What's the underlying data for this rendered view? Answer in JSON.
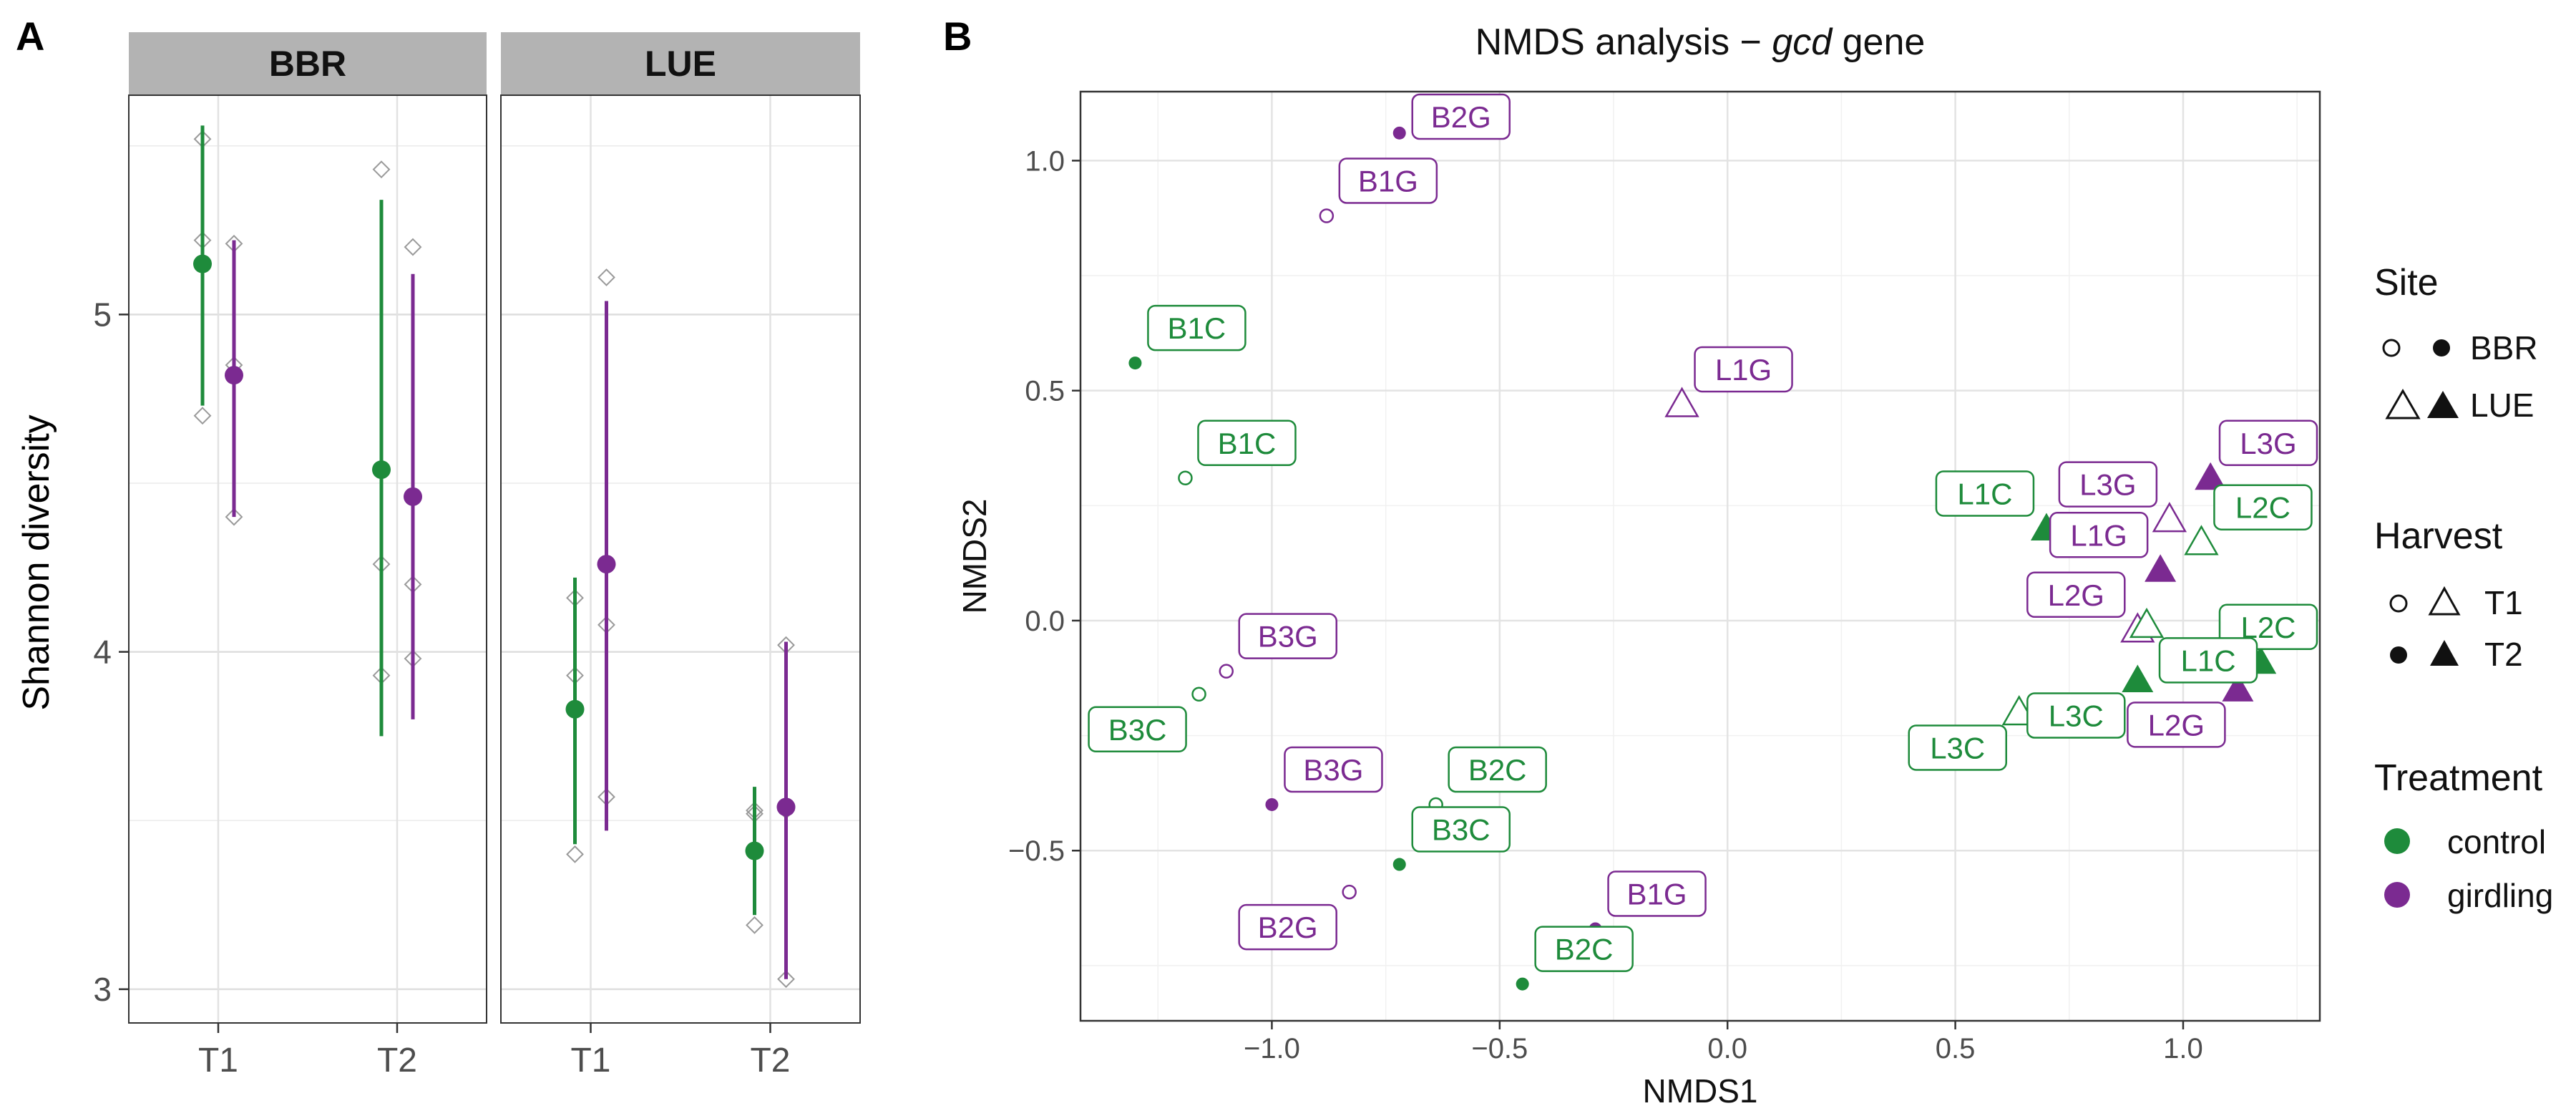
{
  "colors": {
    "control": "#1e8b3b",
    "girdling": "#7b2a91",
    "open_marker": "#9a9a9a",
    "strip": "#b3b3b3",
    "grid": "#ebebeb"
  },
  "chart_data": [
    {
      "type": "pointrange",
      "panel_label": "A",
      "ylabel": "Shannon diversity",
      "ylim": [
        2.9,
        5.65
      ],
      "yticks": [
        3,
        4,
        5
      ],
      "ytick_labels": [
        "3",
        "4",
        "5"
      ],
      "facets": [
        {
          "name": "BBR",
          "categories": [
            "T1",
            "T2"
          ],
          "groups": [
            {
              "category": "T1",
              "treatment": "control",
              "mean": 5.15,
              "low": 4.73,
              "high": 5.56,
              "raw": [
                5.52,
                5.22,
                4.7
              ]
            },
            {
              "category": "T1",
              "treatment": "girdling",
              "mean": 4.82,
              "low": 4.4,
              "high": 5.22,
              "raw": [
                5.21,
                4.85,
                4.4
              ]
            },
            {
              "category": "T2",
              "treatment": "control",
              "mean": 4.54,
              "low": 3.75,
              "high": 5.34,
              "raw": [
                5.43,
                4.26,
                3.93
              ]
            },
            {
              "category": "T2",
              "treatment": "girdling",
              "mean": 4.46,
              "low": 3.8,
              "high": 5.12,
              "raw": [
                5.2,
                4.2,
                3.98
              ]
            }
          ]
        },
        {
          "name": "LUE",
          "categories": [
            "T1",
            "T2"
          ],
          "groups": [
            {
              "category": "T1",
              "treatment": "control",
              "mean": 3.83,
              "low": 3.43,
              "high": 4.22,
              "raw": [
                4.16,
                3.93,
                3.4
              ]
            },
            {
              "category": "T1",
              "treatment": "girdling",
              "mean": 4.26,
              "low": 3.47,
              "high": 5.04,
              "raw": [
                5.11,
                4.08,
                3.57
              ]
            },
            {
              "category": "T2",
              "treatment": "control",
              "mean": 3.41,
              "low": 3.22,
              "high": 3.6,
              "raw": [
                3.52,
                3.53,
                3.19
              ]
            },
            {
              "category": "T2",
              "treatment": "girdling",
              "mean": 3.54,
              "low": 3.03,
              "high": 4.03,
              "raw": [
                4.02,
                3.53,
                3.03
              ]
            }
          ]
        }
      ]
    },
    {
      "type": "scatter",
      "panel_label": "B",
      "title_prefix": "NMDS analysis − ",
      "title_gene": "gcd",
      "title_suffix": " gene",
      "xlabel": "NMDS1",
      "ylabel": "NMDS2",
      "xlim": [
        -1.42,
        1.3
      ],
      "ylim": [
        -0.87,
        1.15
      ],
      "xticks": [
        -1.0,
        -0.5,
        0.0,
        0.5,
        1.0
      ],
      "xtick_labels": [
        "−1.0",
        "−0.5",
        "0.0",
        "0.5",
        "1.0"
      ],
      "yticks": [
        -0.5,
        0.0,
        0.5,
        1.0
      ],
      "ytick_labels": [
        "−0.5",
        "0.0",
        "0.5",
        "1.0"
      ],
      "points": [
        {
          "label": "B2G",
          "x": -0.72,
          "y": 1.06,
          "site": "BBR",
          "harvest": "T2",
          "treatment": "girdling",
          "label_dir": "ur"
        },
        {
          "label": "B1G",
          "x": -0.88,
          "y": 0.88,
          "site": "BBR",
          "harvest": "T1",
          "treatment": "girdling",
          "label_dir": "ur"
        },
        {
          "label": "B1C",
          "x": -1.3,
          "y": 0.56,
          "site": "BBR",
          "harvest": "T2",
          "treatment": "control",
          "label_dir": "ur"
        },
        {
          "label": "B1C",
          "x": -1.19,
          "y": 0.31,
          "site": "BBR",
          "harvest": "T1",
          "treatment": "control",
          "label_dir": "ur"
        },
        {
          "label": "L1G",
          "x": -0.1,
          "y": 0.47,
          "site": "LUE",
          "harvest": "T1",
          "treatment": "girdling",
          "label_dir": "ur"
        },
        {
          "label": "L3G",
          "x": 1.06,
          "y": 0.31,
          "site": "LUE",
          "harvest": "T2",
          "treatment": "girdling",
          "label_dir": "ur"
        },
        {
          "label": "L3G",
          "x": 0.97,
          "y": 0.22,
          "site": "LUE",
          "harvest": "T1",
          "treatment": "girdling",
          "label_dir": "ul"
        },
        {
          "label": "L1C",
          "x": 0.7,
          "y": 0.2,
          "site": "LUE",
          "harvest": "T2",
          "treatment": "control",
          "label_dir": "ul"
        },
        {
          "label": "L2C",
          "x": 1.04,
          "y": 0.17,
          "site": "LUE",
          "harvest": "T1",
          "treatment": "control",
          "label_dir": "ur"
        },
        {
          "label": "L1G",
          "x": 0.95,
          "y": 0.11,
          "site": "LUE",
          "harvest": "T2",
          "treatment": "girdling",
          "label_dir": "ul"
        },
        {
          "label": "L2C",
          "x": 1.17,
          "y": -0.09,
          "site": "LUE",
          "harvest": "T2",
          "treatment": "control",
          "label_dir": "ur"
        },
        {
          "label": "L2G",
          "x": 0.9,
          "y": -0.02,
          "site": "LUE",
          "harvest": "T1",
          "treatment": "girdling",
          "label_dir": "ul"
        },
        {
          "label": "L1C",
          "x": 0.92,
          "y": -0.01,
          "site": "LUE",
          "harvest": "T1",
          "treatment": "control",
          "label_dir": "dr"
        },
        {
          "label": "L3C",
          "x": 0.9,
          "y": -0.13,
          "site": "LUE",
          "harvest": "T2",
          "treatment": "control",
          "label_dir": "dl"
        },
        {
          "label": "L2G",
          "x": 1.12,
          "y": -0.15,
          "site": "LUE",
          "harvest": "T2",
          "treatment": "girdling",
          "label_dir": "dl"
        },
        {
          "label": "L3C",
          "x": 0.64,
          "y": -0.2,
          "site": "LUE",
          "harvest": "T1",
          "treatment": "control",
          "label_dir": "dl"
        },
        {
          "label": "B3G",
          "x": -1.1,
          "y": -0.11,
          "site": "BBR",
          "harvest": "T1",
          "treatment": "girdling",
          "label_dir": "ur"
        },
        {
          "label": "B3C",
          "x": -1.16,
          "y": -0.16,
          "site": "BBR",
          "harvest": "T1",
          "treatment": "control",
          "label_dir": "dl"
        },
        {
          "label": "B3G",
          "x": -1.0,
          "y": -0.4,
          "site": "BBR",
          "harvest": "T2",
          "treatment": "girdling",
          "label_dir": "ur"
        },
        {
          "label": "B2C",
          "x": -0.64,
          "y": -0.4,
          "site": "BBR",
          "harvest": "T1",
          "treatment": "control",
          "label_dir": "ur"
        },
        {
          "label": "B3C",
          "x": -0.72,
          "y": -0.53,
          "site": "BBR",
          "harvest": "T2",
          "treatment": "control",
          "label_dir": "ur"
        },
        {
          "label": "B2G",
          "x": -0.83,
          "y": -0.59,
          "site": "BBR",
          "harvest": "T1",
          "treatment": "girdling",
          "label_dir": "dl"
        },
        {
          "label": "B1G",
          "x": -0.29,
          "y": -0.67,
          "site": "BBR",
          "harvest": "T2",
          "treatment": "girdling",
          "label_dir": "ur"
        },
        {
          "label": "B2C",
          "x": -0.45,
          "y": -0.79,
          "site": "BBR",
          "harvest": "T2",
          "treatment": "control",
          "label_dir": "ur"
        }
      ],
      "legend": {
        "placement": "right",
        "site_title": "Site",
        "site_items": [
          {
            "shape": "circle",
            "label": "BBR"
          },
          {
            "shape": "triangle",
            "label": "LUE"
          }
        ],
        "harvest_title": "Harvest",
        "harvest_items": [
          {
            "fill": "open",
            "label": "T1"
          },
          {
            "fill": "filled",
            "label": "T2"
          }
        ],
        "treatment_title": "Treatment",
        "treatment_items": [
          {
            "key": "control",
            "label": "control"
          },
          {
            "key": "girdling",
            "label": "girdling"
          }
        ]
      }
    }
  ]
}
